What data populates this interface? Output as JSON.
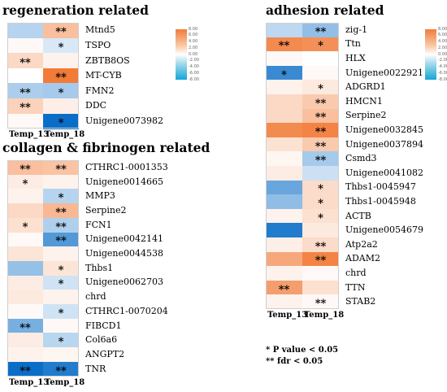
{
  "colors": {
    "high": "#f06a1e",
    "mid": "#ffffff",
    "low": "#0a6ec8",
    "border": "#cfcfcf"
  },
  "chart_data": [
    {
      "type": "heatmap",
      "title": "regeneration related",
      "columns": [
        "Temp_13",
        "Temp_18"
      ],
      "rows": [
        {
          "gene": "Mtnd5",
          "values": [
            -1.6,
            2.6
          ],
          "sig": [
            "",
            "**"
          ]
        },
        {
          "gene": "TSPO",
          "values": [
            0.1,
            -0.7
          ],
          "sig": [
            "",
            "*"
          ]
        },
        {
          "gene": "ZBTB8OS",
          "values": [
            1.3,
            0.3
          ],
          "sig": [
            "**",
            ""
          ]
        },
        {
          "gene": "MT-CYB",
          "values": [
            0.0,
            6.8
          ],
          "sig": [
            "",
            "**"
          ]
        },
        {
          "gene": "FMN2",
          "values": [
            -1.9,
            -2.1
          ],
          "sig": [
            "**",
            "*"
          ]
        },
        {
          "gene": "DDC",
          "values": [
            1.6,
            0.4
          ],
          "sig": [
            "**",
            ""
          ]
        },
        {
          "gene": "Unigene0073982",
          "values": [
            0.1,
            -8.0
          ],
          "sig": [
            "",
            "*"
          ]
        }
      ]
    },
    {
      "type": "heatmap",
      "title": "collagen & fibrinogen related",
      "columns": [
        "Temp_13",
        "Temp_18"
      ],
      "rows": [
        {
          "gene": "CTHRC1-0001353",
          "values": [
            2.6,
            2.4
          ],
          "sig": [
            "**",
            "**"
          ]
        },
        {
          "gene": "Unigene0014665",
          "values": [
            0.5,
            0.3
          ],
          "sig": [
            "*",
            ""
          ]
        },
        {
          "gene": "MMP3",
          "values": [
            0.3,
            -1.6
          ],
          "sig": [
            "",
            "*"
          ]
        },
        {
          "gene": "Serpine2",
          "values": [
            1.3,
            3.0
          ],
          "sig": [
            "",
            "**"
          ]
        },
        {
          "gene": "FCN1",
          "values": [
            1.0,
            -1.8
          ],
          "sig": [
            "*",
            "**"
          ]
        },
        {
          "gene": "Unigene0042141",
          "values": [
            0.1,
            -5.0
          ],
          "sig": [
            "",
            "**"
          ]
        },
        {
          "gene": "Unigene0044538",
          "values": [
            0.8,
            0.3
          ],
          "sig": [
            "",
            ""
          ]
        },
        {
          "gene": "Thbs1",
          "values": [
            -2.6,
            0.8
          ],
          "sig": [
            "",
            "*"
          ]
        },
        {
          "gene": "Unigene0062703",
          "values": [
            0.5,
            -0.9
          ],
          "sig": [
            "",
            "*"
          ]
        },
        {
          "gene": "chrd",
          "values": [
            0.6,
            0.3
          ],
          "sig": [
            "",
            ""
          ]
        },
        {
          "gene": "CTHRC1-0070204",
          "values": [
            0.1,
            -0.9
          ],
          "sig": [
            "",
            "*"
          ]
        },
        {
          "gene": "FIBCD1",
          "values": [
            -3.6,
            0.1
          ],
          "sig": [
            "**",
            ""
          ]
        },
        {
          "gene": "Col6a6",
          "values": [
            0.5,
            -1.5
          ],
          "sig": [
            "",
            "*"
          ]
        },
        {
          "gene": "ANGPT2",
          "values": [
            0.3,
            0.2
          ],
          "sig": [
            "",
            ""
          ]
        },
        {
          "gene": "TNR",
          "values": [
            -8.0,
            -7.0
          ],
          "sig": [
            "**",
            "**"
          ]
        }
      ]
    },
    {
      "type": "heatmap",
      "title": "adhesion related",
      "columns": [
        "Temp_13",
        "Temp_18"
      ],
      "rows": [
        {
          "gene": "zig-1",
          "values": [
            -1.4,
            -2.7
          ],
          "sig": [
            "",
            "**"
          ]
        },
        {
          "gene": "Ttn",
          "values": [
            5.8,
            5.4
          ],
          "sig": [
            "**",
            "*"
          ]
        },
        {
          "gene": "HLX",
          "values": [
            0.1,
            0.0
          ],
          "sig": [
            "",
            ""
          ]
        },
        {
          "gene": "Unigene0022921",
          "values": [
            -6.0,
            0.1
          ],
          "sig": [
            "*",
            ""
          ]
        },
        {
          "gene": "ADGRD1",
          "values": [
            0.3,
            0.6
          ],
          "sig": [
            "",
            "*"
          ]
        },
        {
          "gene": "HMCN1",
          "values": [
            1.3,
            2.0
          ],
          "sig": [
            "",
            "**"
          ]
        },
        {
          "gene": "Serpine2",
          "values": [
            1.3,
            2.6
          ],
          "sig": [
            "",
            "**"
          ]
        },
        {
          "gene": "Unigene0032845",
          "values": [
            5.8,
            6.2
          ],
          "sig": [
            "",
            "**"
          ]
        },
        {
          "gene": "Unigene0037894",
          "values": [
            0.9,
            2.0
          ],
          "sig": [
            "",
            "**"
          ]
        },
        {
          "gene": "Csmd3",
          "values": [
            0.2,
            -2.1
          ],
          "sig": [
            "",
            "**"
          ]
        },
        {
          "gene": "Unigene0041082",
          "values": [
            0.5,
            -1.0
          ],
          "sig": [
            "",
            ""
          ]
        },
        {
          "gene": "Thbs1-0045947",
          "values": [
            -4.2,
            1.2
          ],
          "sig": [
            "",
            "*"
          ]
        },
        {
          "gene": "Thbs1-0045948",
          "values": [
            -2.8,
            1.2
          ],
          "sig": [
            "",
            "*"
          ]
        },
        {
          "gene": "ACTB",
          "values": [
            0.3,
            1.0
          ],
          "sig": [
            "",
            "*"
          ]
        },
        {
          "gene": "Unigene0054679",
          "values": [
            -7.0,
            0.6
          ],
          "sig": [
            "",
            ""
          ]
        },
        {
          "gene": "Atp2a2",
          "values": [
            0.4,
            1.2
          ],
          "sig": [
            "",
            "**"
          ]
        },
        {
          "gene": "ADAM2",
          "values": [
            3.9,
            6.2
          ],
          "sig": [
            "",
            "**"
          ]
        },
        {
          "gene": "chrd",
          "values": [
            0.3,
            0.1
          ],
          "sig": [
            "",
            ""
          ]
        },
        {
          "gene": "TTN",
          "values": [
            4.5,
            1.0
          ],
          "sig": [
            "**",
            ""
          ]
        },
        {
          "gene": "STAB2",
          "values": [
            0.3,
            0.1
          ],
          "sig": [
            "",
            "**"
          ]
        }
      ]
    }
  ],
  "colorbar": {
    "ticks": [
      "8.00",
      "6.00",
      "4.00",
      "2.00",
      "0.00",
      "-2.00",
      "-4.00",
      "-6.00",
      "-8.00"
    ],
    "range": [
      -8,
      8
    ]
  },
  "legend": {
    "p_value": "* P value < 0.05",
    "fdr": "** fdr < 0.05"
  }
}
